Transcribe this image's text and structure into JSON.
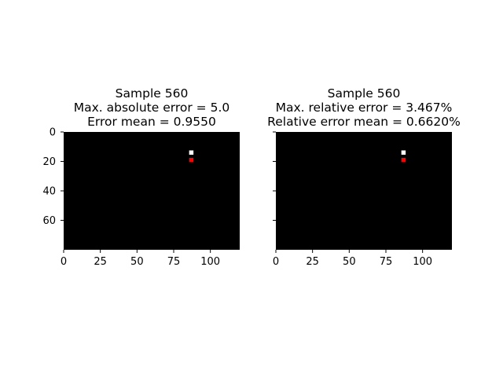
{
  "chart_data": [
    {
      "type": "heatmap",
      "title_lines": [
        "Sample 560",
        "Max. absolute error = 5.0",
        "Error mean = 0.9550"
      ],
      "xlim": [
        0,
        120
      ],
      "ylim": [
        80,
        0
      ],
      "xticks": [
        0,
        25,
        50,
        75,
        100
      ],
      "yticks": [
        0,
        20,
        40,
        60
      ],
      "ytick_labels_visible": true,
      "background_color": "#000000",
      "markers": [
        {
          "x": 87,
          "y": 14,
          "color": "#ffffff"
        },
        {
          "x": 87,
          "y": 19,
          "color": "#ff0000"
        }
      ]
    },
    {
      "type": "heatmap",
      "title_lines": [
        "Sample 560",
        "Max. relative error = 3.467%",
        "Relative error mean = 0.6620%"
      ],
      "xlim": [
        0,
        120
      ],
      "ylim": [
        80,
        0
      ],
      "xticks": [
        0,
        25,
        50,
        75,
        100
      ],
      "yticks": [
        0,
        20,
        40,
        60
      ],
      "ytick_labels_visible": false,
      "background_color": "#000000",
      "markers": [
        {
          "x": 87,
          "y": 14,
          "color": "#ffffff"
        },
        {
          "x": 87,
          "y": 19,
          "color": "#ff0000"
        }
      ]
    }
  ]
}
